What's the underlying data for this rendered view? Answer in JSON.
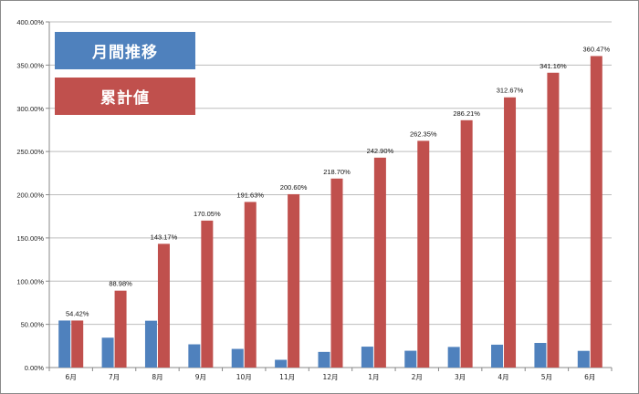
{
  "chart_data": {
    "type": "bar",
    "categories": [
      "6月",
      "7月",
      "8月",
      "9月",
      "10月",
      "11月",
      "12月",
      "1月",
      "2月",
      "3月",
      "4月",
      "5月",
      "6月"
    ],
    "series": [
      {
        "name": "月間推移",
        "color": "#4f81bd",
        "values": [
          54.42,
          34.56,
          54.19,
          26.88,
          21.58,
          8.97,
          18.1,
          24.2,
          19.45,
          23.86,
          26.46,
          28.49,
          19.31
        ]
      },
      {
        "name": "累計値",
        "color": "#c0504d",
        "values": [
          54.42,
          88.98,
          143.17,
          170.05,
          191.63,
          200.6,
          218.7,
          242.9,
          262.35,
          286.21,
          312.67,
          341.16,
          360.47
        ]
      }
    ],
    "data_labels": [
      "54.42%",
      "88.98%",
      "143.17%",
      "170.05%",
      "191.63%",
      "200.60%",
      "218.70%",
      "242.90%",
      "262.35%",
      "286.21%",
      "312.67%",
      "341.16%",
      "360.47%"
    ],
    "y_ticks": [
      "0.00%",
      "50.00%",
      "100.00%",
      "150.00%",
      "200.00%",
      "250.00%",
      "300.00%",
      "350.00%",
      "400.00%"
    ],
    "ylim": [
      0,
      400
    ],
    "grid": "horizontal",
    "legend_position": "top-left"
  }
}
